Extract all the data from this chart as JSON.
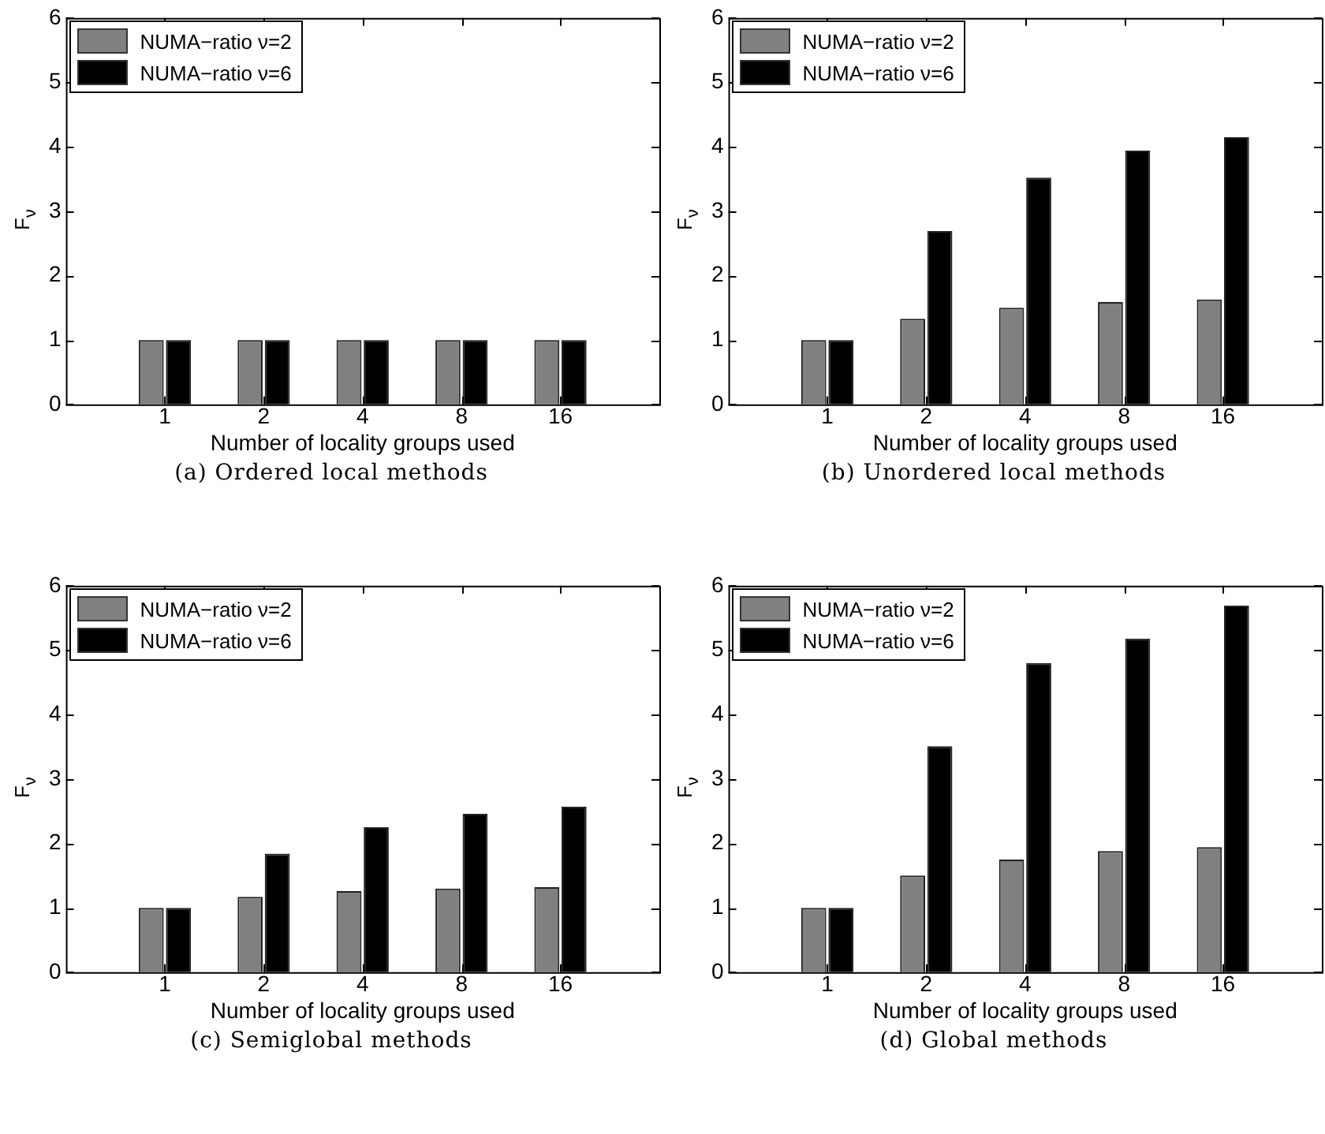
{
  "chart_data": [
    {
      "type": "bar",
      "title": "(a) Ordered local methods",
      "xlabel": "Number of locality groups used",
      "ylabel": "F$_{ν}$",
      "categories": [
        "1",
        "2",
        "4",
        "8",
        "16"
      ],
      "series": [
        {
          "name": "NUMA−ratio ν=2",
          "color": "#808080",
          "values": [
            1,
            1,
            1,
            1,
            1
          ]
        },
        {
          "name": "NUMA−ratio ν=6",
          "color": "#000000",
          "values": [
            1,
            1,
            1,
            1,
            1
          ]
        }
      ],
      "ylim": [
        0,
        6
      ],
      "yticks": [
        0,
        1,
        2,
        3,
        4,
        5,
        6
      ],
      "legend": "top left",
      "grid": false
    },
    {
      "type": "bar",
      "title": "(b) Unordered local methods",
      "xlabel": "Number of locality groups used",
      "ylabel": "F$_{ν}$",
      "categories": [
        "1",
        "2",
        "4",
        "8",
        "16"
      ],
      "series": [
        {
          "name": "NUMA−ratio ν=2",
          "color": "#808080",
          "values": [
            1,
            1.33,
            1.5,
            1.59,
            1.63
          ]
        },
        {
          "name": "NUMA−ratio ν=6",
          "color": "#000000",
          "values": [
            1,
            2.69,
            3.52,
            3.94,
            4.15
          ]
        }
      ],
      "ylim": [
        0,
        6
      ],
      "yticks": [
        0,
        1,
        2,
        3,
        4,
        5,
        6
      ],
      "legend": "top left",
      "grid": false
    },
    {
      "type": "bar",
      "title": "(c) Semiglobal methods",
      "xlabel": "Number of locality groups used",
      "ylabel": "F$_{ν}$",
      "categories": [
        "1",
        "2",
        "4",
        "8",
        "16"
      ],
      "series": [
        {
          "name": "NUMA−ratio ν=2",
          "color": "#808080",
          "values": [
            1,
            1.17,
            1.26,
            1.3,
            1.32
          ]
        },
        {
          "name": "NUMA−ratio ν=6",
          "color": "#000000",
          "values": [
            1,
            1.84,
            2.25,
            2.46,
            2.57
          ]
        }
      ],
      "ylim": [
        0,
        6
      ],
      "yticks": [
        0,
        1,
        2,
        3,
        4,
        5,
        6
      ],
      "legend": "top left",
      "grid": false
    },
    {
      "type": "bar",
      "title": "(d) Global methods",
      "xlabel": "Number of locality groups used",
      "ylabel": "F$_{ν}$",
      "categories": [
        "1",
        "2",
        "4",
        "8",
        "16"
      ],
      "series": [
        {
          "name": "NUMA−ratio ν=2",
          "color": "#808080",
          "values": [
            1,
            1.5,
            1.75,
            1.88,
            1.94
          ]
        },
        {
          "name": "NUMA−ratio ν=6",
          "color": "#000000",
          "values": [
            1,
            3.51,
            4.8,
            5.18,
            5.69
          ]
        }
      ],
      "ylim": [
        0,
        6
      ],
      "yticks": [
        0,
        1,
        2,
        3,
        4,
        5,
        6
      ],
      "legend": "top left",
      "grid": false
    }
  ]
}
